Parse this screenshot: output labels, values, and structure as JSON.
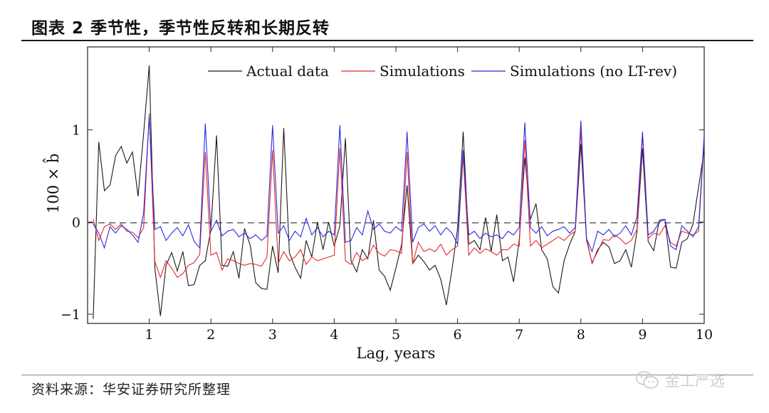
{
  "title": "图表 2 季节性，季节性反转和长期反转",
  "source": "资料来源：华安证券研究所整理",
  "watermark": "金工严选",
  "chart_data": {
    "type": "line",
    "xlabel": "Lag, years",
    "ylabel": "100 × b̂",
    "xlim": [
      0,
      10
    ],
    "ylim": [
      -1.1,
      1.9
    ],
    "xticks": [
      1,
      2,
      3,
      4,
      5,
      6,
      7,
      8,
      9,
      10
    ],
    "yticks": [
      -1,
      0,
      1
    ],
    "xtick_labels": [
      "1",
      "2",
      "3",
      "4",
      "5",
      "6",
      "7",
      "8",
      "9",
      "10"
    ],
    "ytick_labels": [
      "−1",
      "0",
      "1"
    ],
    "zero_line": "dashed",
    "legend_position": "top-right",
    "series": [
      {
        "name": "Actual data",
        "color": "#1a1a1a",
        "values": [
          -1.05,
          0.87,
          0.34,
          0.4,
          0.72,
          0.82,
          0.64,
          0.76,
          0.28,
          0.96,
          1.7,
          -0.5,
          -1.02,
          -0.47,
          -0.33,
          -0.53,
          -0.32,
          -0.69,
          -0.68,
          -0.47,
          -0.42,
          -0.08,
          0.94,
          -0.47,
          -0.48,
          -0.32,
          -0.61,
          -0.07,
          -0.25,
          -0.66,
          -0.72,
          -0.73,
          -0.26,
          -0.55,
          1.02,
          -0.33,
          -0.49,
          -0.61,
          -0.2,
          -0.38,
          0.0,
          -0.3,
          0.0,
          -0.26,
          -0.04,
          0.91,
          -0.42,
          -0.54,
          -0.3,
          -0.4,
          0.02,
          -0.52,
          -0.59,
          -0.74,
          -0.5,
          -0.25,
          0.4,
          -0.45,
          -0.36,
          -0.43,
          -0.52,
          -0.47,
          -0.62,
          -0.9,
          -0.52,
          -0.07,
          0.98,
          -0.24,
          -0.2,
          -0.3,
          0.05,
          -0.32,
          0.08,
          -0.42,
          -0.38,
          -0.65,
          -0.2,
          0.7,
          0.03,
          0.2,
          -0.3,
          -0.4,
          -0.7,
          -0.77,
          -0.42,
          -0.24,
          -0.1,
          0.85,
          -0.18,
          -0.45,
          -0.3,
          -0.22,
          -0.27,
          -0.45,
          -0.42,
          -0.3,
          -0.49,
          -0.11,
          0.8,
          -0.21,
          -0.31,
          0.02,
          0.03,
          -0.49,
          -0.5,
          -0.22,
          -0.18,
          -0.02,
          0.38,
          0.78
        ]
      },
      {
        "name": "Simulations",
        "color": "#e8282b",
        "values": [
          0.03,
          -0.2,
          -0.05,
          -0.02,
          -0.08,
          -0.02,
          -0.1,
          -0.11,
          -0.17,
          -0.06,
          1.18,
          -0.43,
          -0.6,
          -0.42,
          -0.5,
          -0.6,
          -0.56,
          -0.47,
          -0.44,
          -0.35,
          0.76,
          -0.36,
          -0.33,
          -0.52,
          -0.4,
          -0.42,
          -0.45,
          -0.47,
          -0.45,
          -0.46,
          -0.48,
          -0.38,
          0.78,
          -0.45,
          -0.32,
          -0.42,
          -0.38,
          -0.3,
          -0.46,
          -0.38,
          -0.42,
          -0.4,
          -0.38,
          -0.36,
          0.8,
          -0.42,
          -0.46,
          -0.33,
          -0.42,
          -0.38,
          -0.25,
          -0.34,
          -0.37,
          -0.3,
          -0.31,
          -0.34,
          0.76,
          -0.45,
          -0.22,
          -0.32,
          -0.29,
          -0.32,
          -0.24,
          -0.36,
          -0.3,
          -0.26,
          0.72,
          -0.36,
          -0.28,
          -0.34,
          -0.29,
          -0.32,
          -0.36,
          -0.3,
          -0.3,
          -0.24,
          -0.26,
          0.89,
          -0.26,
          -0.2,
          -0.28,
          -0.24,
          -0.2,
          -0.16,
          -0.2,
          -0.14,
          -0.1,
          1.0,
          -0.2,
          -0.44,
          -0.32,
          -0.19,
          -0.2,
          -0.14,
          -0.18,
          -0.24,
          -0.2,
          -0.08,
          0.95,
          -0.18,
          -0.12,
          -0.14,
          -0.04,
          -0.22,
          -0.26,
          -0.1,
          -0.12,
          -0.14,
          -0.1,
          0.9
        ]
      },
      {
        "name": "Simulations (no LT-rev)",
        "color": "#2b2bdf",
        "values": [
          -0.02,
          -0.12,
          -0.28,
          -0.05,
          -0.12,
          -0.04,
          -0.08,
          -0.14,
          -0.22,
          0.1,
          1.15,
          -0.08,
          -0.05,
          -0.2,
          -0.12,
          -0.06,
          -0.15,
          -0.03,
          -0.21,
          -0.28,
          1.07,
          -0.1,
          0.02,
          -0.15,
          -0.1,
          -0.08,
          -0.16,
          -0.12,
          -0.18,
          -0.14,
          -0.2,
          -0.15,
          1.05,
          -0.12,
          -0.04,
          -0.2,
          -0.1,
          -0.16,
          0.04,
          -0.14,
          -0.06,
          -0.16,
          -0.1,
          -0.14,
          1.05,
          -0.22,
          -0.2,
          -0.06,
          -0.14,
          0.12,
          -0.08,
          -0.02,
          -0.1,
          -0.12,
          -0.05,
          -0.1,
          0.98,
          -0.22,
          -0.06,
          -0.02,
          -0.1,
          -0.04,
          -0.14,
          -0.06,
          -0.12,
          -0.24,
          0.78,
          -0.14,
          -0.1,
          -0.18,
          -0.12,
          -0.16,
          -0.14,
          -0.18,
          -0.1,
          -0.14,
          -0.06,
          1.08,
          -0.06,
          -0.12,
          -0.05,
          -0.15,
          -0.1,
          -0.08,
          -0.05,
          -0.12,
          -0.06,
          1.1,
          -0.18,
          -0.32,
          -0.1,
          -0.14,
          -0.08,
          -0.16,
          -0.12,
          -0.04,
          -0.14,
          0.05,
          0.98,
          -0.14,
          -0.1,
          0.0,
          0.03,
          -0.26,
          -0.3,
          -0.04,
          -0.1,
          -0.16,
          -0.05,
          0.95
        ]
      }
    ]
  }
}
